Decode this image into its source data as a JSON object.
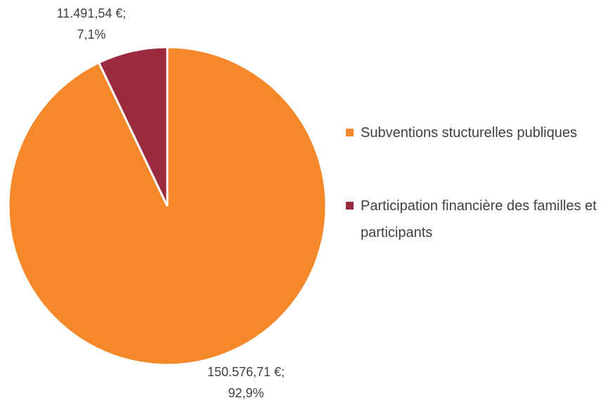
{
  "chart_data": {
    "type": "pie",
    "categories": [
      "Subventions stucturelles publiques",
      "Participation financière des familles et participants"
    ],
    "values": [
      150576.71,
      11491.54
    ],
    "value_labels": [
      "150.576,71 €;",
      "11.491,54 €;"
    ],
    "percentages": [
      92.9,
      7.1
    ],
    "percent_labels": [
      "92,9%",
      "7,1%"
    ],
    "colors": [
      "#f5892a",
      "#9c2a3e"
    ],
    "legend": "right"
  }
}
